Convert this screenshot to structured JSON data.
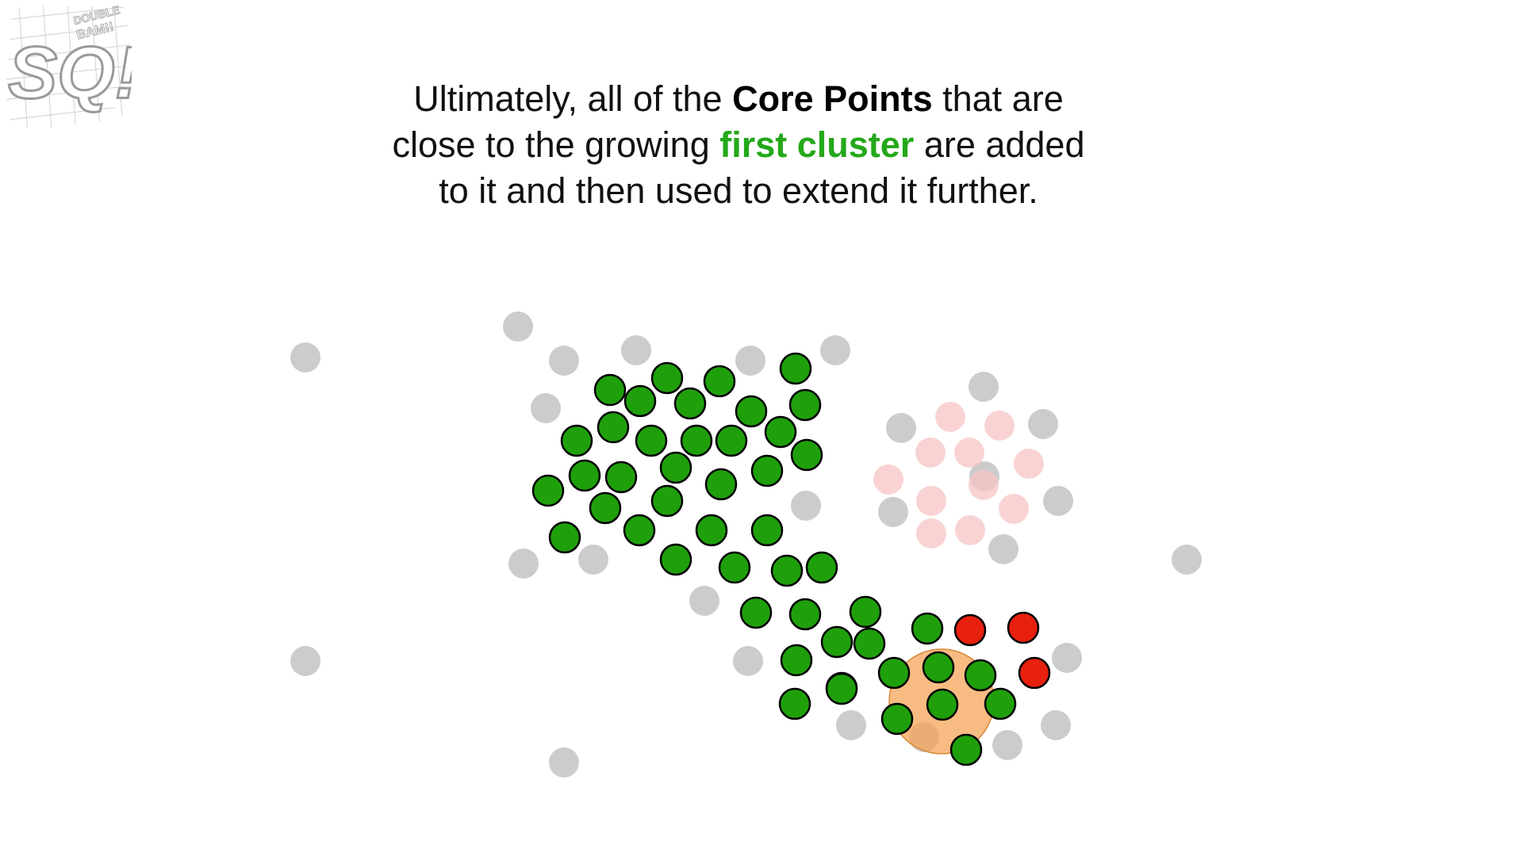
{
  "logo": {
    "line1": "DOUBLE",
    "line2": "BAM!!",
    "letters": "SQ!"
  },
  "caption": {
    "line1_pre": "Ultimately, all of the ",
    "line1_bold": "Core Points",
    "line1_post": " that are",
    "line2_pre": "close to the growing ",
    "line2_highlight": "first cluster",
    "line2_post": " are added",
    "line3": "to it and then used to extend it further."
  },
  "colors": {
    "cluster": "#1fa00b",
    "cluster_text": "#24a81a",
    "outlier": "#e8200e",
    "unassigned": "#cccccc",
    "faded_cluster": "#f7c4c4",
    "neighborhood": "#f5a253"
  }
}
